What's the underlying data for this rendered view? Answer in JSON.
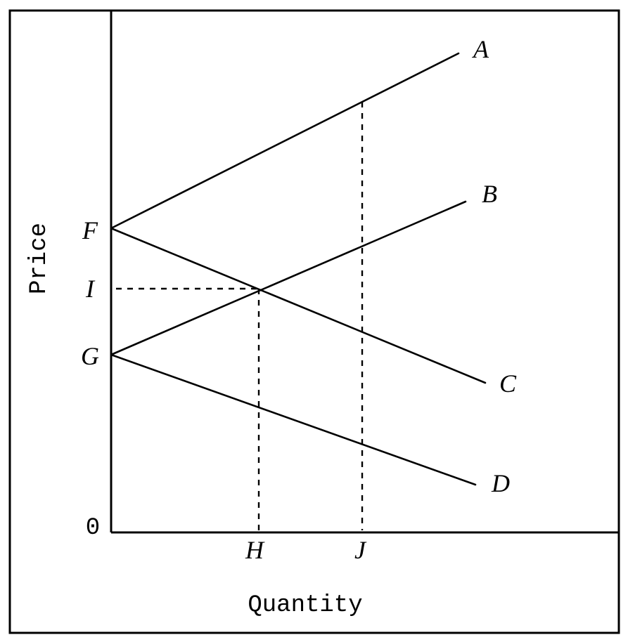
{
  "axes": {
    "y_label": "Price",
    "x_label": "Quantity",
    "origin_label": "0"
  },
  "point_labels": {
    "F": "F",
    "I": "I",
    "G": "G",
    "H": "H",
    "J": "J"
  },
  "curves": [
    {
      "label": "A"
    },
    {
      "label": "B"
    },
    {
      "label": "C"
    },
    {
      "label": "D"
    }
  ]
}
